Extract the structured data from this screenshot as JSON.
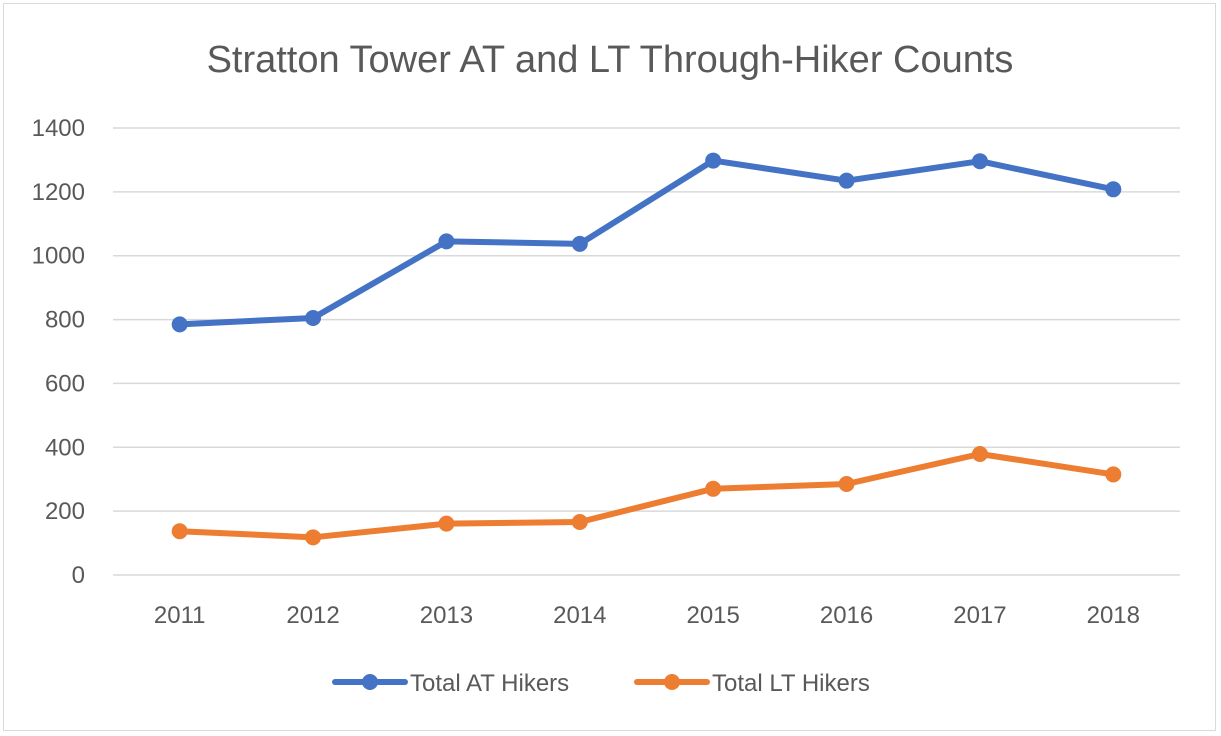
{
  "chart_data": {
    "type": "line",
    "title": "Stratton Tower AT and LT Through-Hiker Counts",
    "xlabel": "",
    "ylabel": "",
    "categories": [
      "2011",
      "2012",
      "2013",
      "2014",
      "2015",
      "2016",
      "2017",
      "2018"
    ],
    "ylim": [
      0,
      1400
    ],
    "yticks": [
      0,
      200,
      400,
      600,
      800,
      1000,
      1200,
      1400
    ],
    "grid": true,
    "legend_position": "bottom",
    "series": [
      {
        "name": "Total AT Hikers",
        "color": "#4472c4",
        "values": [
          785,
          805,
          1045,
          1037,
          1298,
          1235,
          1296,
          1208
        ]
      },
      {
        "name": "Total LT Hikers",
        "color": "#ed7d31",
        "values": [
          137,
          118,
          161,
          166,
          270,
          285,
          379,
          315
        ]
      }
    ]
  }
}
